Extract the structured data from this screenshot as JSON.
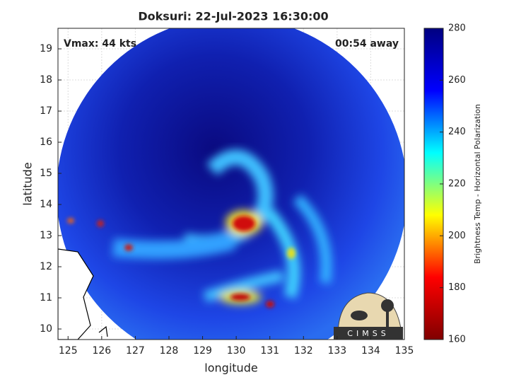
{
  "chart_data": {
    "type": "image",
    "title": "Doksuri: 22-Jul-2023 16:30:00",
    "xlabel": "longitude",
    "ylabel": "latitude",
    "xlim": [
      124.7,
      135
    ],
    "ylim": [
      9.66,
      19.66
    ],
    "xticks": [
      125,
      126,
      127,
      128,
      129,
      130,
      131,
      132,
      133,
      134,
      135
    ],
    "yticks": [
      10,
      11,
      12,
      13,
      14,
      15,
      16,
      17,
      18,
      19
    ],
    "grid": true,
    "annotations": [
      "Vmax: 44 kts",
      "00:54 away"
    ],
    "logo": "CIMSS",
    "colorbar": {
      "label": "Brightness Temp - Horizontal Polarization",
      "lim": [
        160,
        280
      ],
      "ticks": [
        160,
        180,
        200,
        220,
        240,
        260,
        280
      ],
      "colormap": [
        "#800000",
        "#ff0000",
        "#ffff00",
        "#00ffff",
        "#0000ff",
        "#000080"
      ]
    }
  }
}
